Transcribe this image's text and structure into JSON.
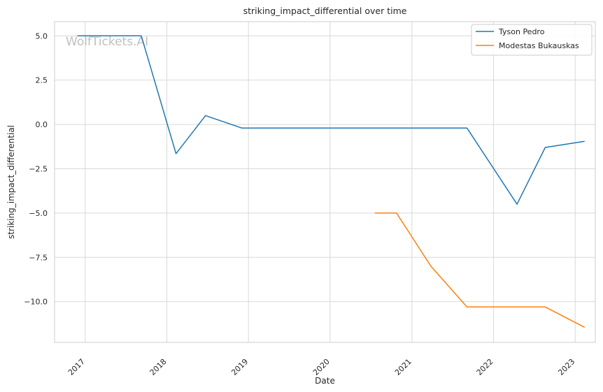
{
  "chart_data": {
    "type": "line",
    "title": "striking_impact_differential over time",
    "xlabel": "Date",
    "ylabel": "striking_impact_differential",
    "watermark": "WolfTickets.AI",
    "x_ticks": [
      "2017",
      "2018",
      "2019",
      "2020",
      "2021",
      "2022",
      "2023"
    ],
    "y_ticks": [
      5.0,
      2.5,
      0.0,
      -2.5,
      -5.0,
      -7.5,
      -10.0
    ],
    "y_tick_labels": [
      "5.0",
      "2.5",
      "0.0",
      "−2.5",
      "−5.0",
      "−7.5",
      "−10.0"
    ],
    "xlim": [
      "2016-08-17",
      "2023-04-01"
    ],
    "ylim": [
      -12.3,
      5.8
    ],
    "grid": true,
    "legend_position": "top-right",
    "series": [
      {
        "name": "Tyson Pedro",
        "color": "#1f77b4",
        "points": [
          {
            "x": "2016-11-27",
            "y": 5.0
          },
          {
            "x": "2017-09-09",
            "y": 5.0
          },
          {
            "x": "2018-02-11",
            "y": -1.65
          },
          {
            "x": "2018-06-23",
            "y": 0.5
          },
          {
            "x": "2018-12-02",
            "y": -0.2
          },
          {
            "x": "2021-09-04",
            "y": -0.2
          },
          {
            "x": "2022-04-16",
            "y": -4.5
          },
          {
            "x": "2022-08-20",
            "y": -1.3
          },
          {
            "x": "2023-02-12",
            "y": -0.95
          }
        ]
      },
      {
        "name": "Modestas Bukauskas",
        "color": "#ff7f0e",
        "points": [
          {
            "x": "2020-07-19",
            "y": -5.0
          },
          {
            "x": "2020-10-24",
            "y": -5.0
          },
          {
            "x": "2021-03-27",
            "y": -8.0
          },
          {
            "x": "2021-09-04",
            "y": -10.3
          },
          {
            "x": "2022-08-20",
            "y": -10.3
          },
          {
            "x": "2023-02-12",
            "y": -11.45
          }
        ]
      }
    ]
  }
}
